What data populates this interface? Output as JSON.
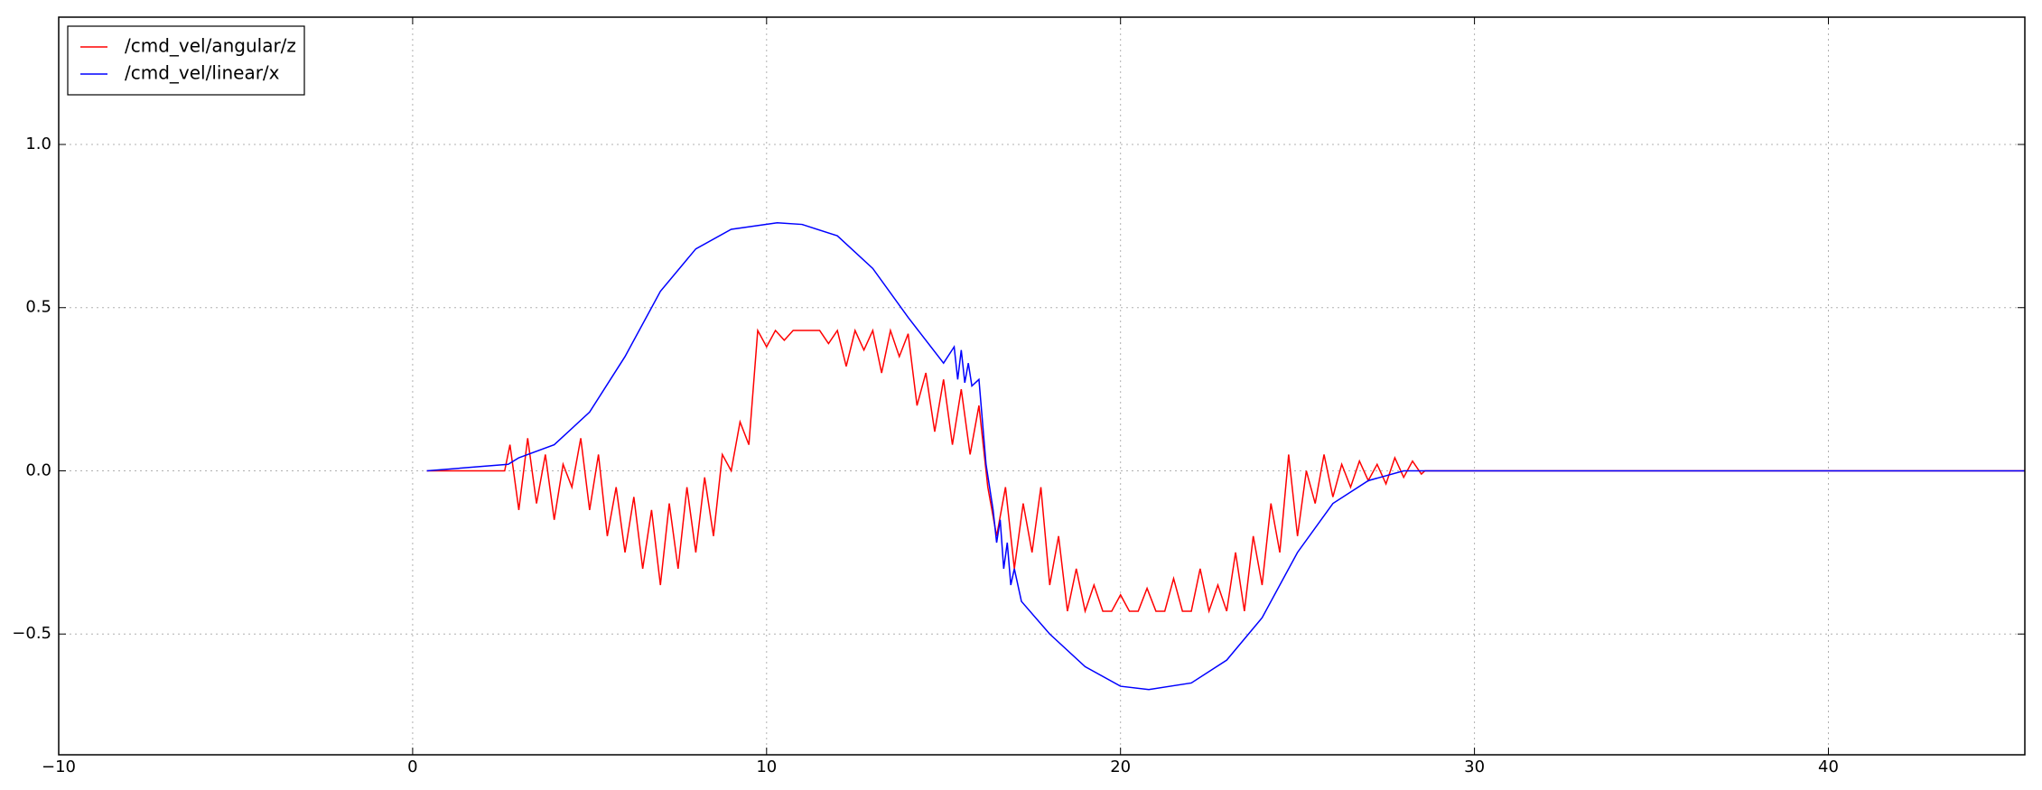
{
  "chart_data": {
    "type": "line",
    "series": [
      {
        "name": "/cmd_vel/angular/z",
        "color": "#ff0000",
        "x": [
          0.4,
          2.6,
          2.75,
          3.0,
          3.25,
          3.5,
          3.75,
          4.0,
          4.25,
          4.5,
          4.75,
          5.0,
          5.25,
          5.5,
          5.75,
          6.0,
          6.25,
          6.5,
          6.75,
          7.0,
          7.25,
          7.5,
          7.75,
          8.0,
          8.25,
          8.5,
          8.75,
          9.0,
          9.25,
          9.5,
          9.75,
          10.0,
          10.25,
          10.5,
          10.75,
          11.0,
          11.25,
          11.5,
          11.75,
          12.0,
          12.25,
          12.5,
          12.75,
          13.0,
          13.25,
          13.5,
          13.75,
          14.0,
          14.25,
          14.5,
          14.75,
          15.0,
          15.25,
          15.5,
          15.75,
          16.0,
          16.25,
          16.5,
          16.75,
          17.0,
          17.25,
          17.5,
          17.75,
          18.0,
          18.25,
          18.5,
          18.75,
          19.0,
          19.25,
          19.5,
          19.75,
          20.0,
          20.25,
          20.5,
          20.75,
          21.0,
          21.25,
          21.5,
          21.75,
          22.0,
          22.25,
          22.5,
          22.75,
          23.0,
          23.25,
          23.5,
          23.75,
          24.0,
          24.25,
          24.5,
          24.75,
          25.0,
          25.25,
          25.5,
          25.75,
          26.0,
          26.25,
          26.5,
          26.75,
          27.0,
          27.25,
          27.5,
          27.75,
          28.0,
          28.25,
          28.5,
          28.6,
          45.55
        ],
        "values": [
          0,
          0,
          0.08,
          -0.12,
          0.1,
          -0.1,
          0.05,
          -0.15,
          0.02,
          -0.05,
          0.1,
          -0.12,
          0.05,
          -0.2,
          -0.05,
          -0.25,
          -0.08,
          -0.3,
          -0.12,
          -0.35,
          -0.1,
          -0.3,
          -0.05,
          -0.25,
          -0.02,
          -0.2,
          0.05,
          0.0,
          0.15,
          0.08,
          0.43,
          0.38,
          0.43,
          0.4,
          0.43,
          0.43,
          0.43,
          0.43,
          0.39,
          0.43,
          0.32,
          0.43,
          0.37,
          0.43,
          0.3,
          0.43,
          0.35,
          0.42,
          0.2,
          0.3,
          0.12,
          0.28,
          0.08,
          0.25,
          0.05,
          0.2,
          -0.05,
          -0.2,
          -0.05,
          -0.3,
          -0.1,
          -0.25,
          -0.05,
          -0.35,
          -0.2,
          -0.43,
          -0.3,
          -0.43,
          -0.35,
          -0.43,
          -0.43,
          -0.38,
          -0.43,
          -0.43,
          -0.36,
          -0.43,
          -0.43,
          -0.33,
          -0.43,
          -0.43,
          -0.3,
          -0.43,
          -0.35,
          -0.43,
          -0.25,
          -0.43,
          -0.2,
          -0.35,
          -0.1,
          -0.25,
          0.05,
          -0.2,
          0.0,
          -0.1,
          0.05,
          -0.08,
          0.02,
          -0.05,
          0.03,
          -0.03,
          0.02,
          -0.04,
          0.04,
          -0.02,
          0.03,
          -0.01,
          0,
          0
        ]
      },
      {
        "name": "/cmd_vel/linear/x",
        "color": "#0000ff",
        "x": [
          0.4,
          2.7,
          3.0,
          4.0,
          5.0,
          6.0,
          7.0,
          8.0,
          9.0,
          10.3,
          11.0,
          12.0,
          13.0,
          14.0,
          15.0,
          15.3,
          15.4,
          15.5,
          15.6,
          15.7,
          15.8,
          16.0,
          16.2,
          16.4,
          16.5,
          16.6,
          16.7,
          16.8,
          16.9,
          17.0,
          17.2,
          18.0,
          19.0,
          20.0,
          20.8,
          22.0,
          23.0,
          24.0,
          25.0,
          26.0,
          27.0,
          28.0,
          28.6,
          45.55
        ],
        "values": [
          0,
          0.02,
          0.04,
          0.08,
          0.18,
          0.35,
          0.55,
          0.68,
          0.74,
          0.76,
          0.755,
          0.72,
          0.62,
          0.47,
          0.33,
          0.38,
          0.28,
          0.37,
          0.27,
          0.33,
          0.26,
          0.28,
          0.02,
          -0.12,
          -0.22,
          -0.15,
          -0.3,
          -0.22,
          -0.35,
          -0.3,
          -0.4,
          -0.5,
          -0.6,
          -0.66,
          -0.67,
          -0.65,
          -0.58,
          -0.45,
          -0.25,
          -0.1,
          -0.03,
          0,
          0,
          0
        ]
      }
    ],
    "xlim": [
      -10,
      45.55
    ],
    "ylim": [
      -0.87,
      1.39
    ],
    "xticks": [
      {
        "value": -10,
        "label": "−10"
      },
      0,
      10,
      20,
      30,
      40
    ],
    "yticks": [
      {
        "value": -0.5,
        "label": "−0.5"
      },
      {
        "value": 0,
        "label": "0.0"
      },
      0.5,
      {
        "value": 1,
        "label": "1.0"
      }
    ],
    "grid": true,
    "legend": "upper left"
  }
}
